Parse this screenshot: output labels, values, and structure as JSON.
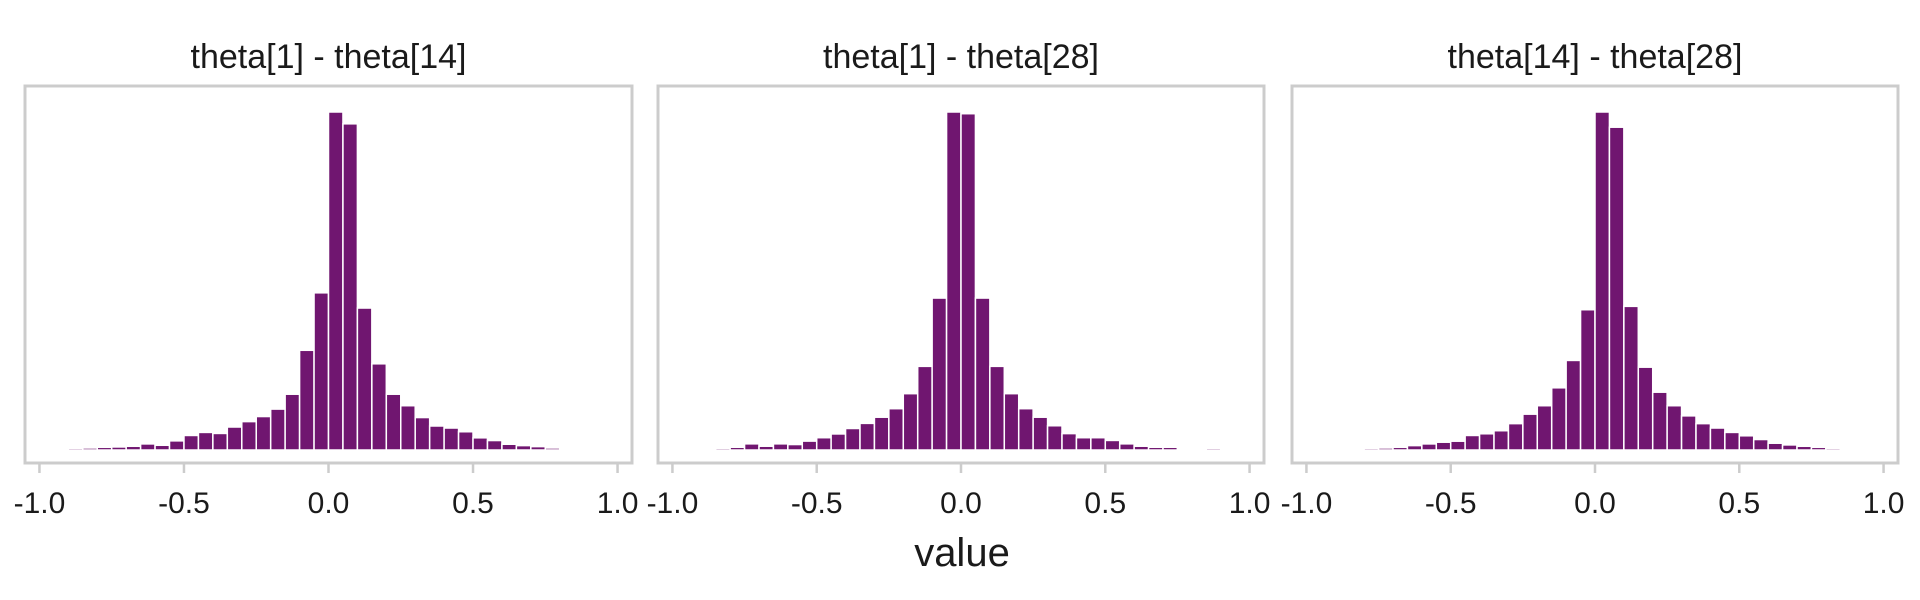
{
  "chart_data": {
    "type": "bar",
    "xlabel": "value",
    "xlim": [
      -1.05,
      1.05
    ],
    "xticks": [
      -1.0,
      -0.5,
      0.0,
      0.5,
      1.0
    ],
    "tick_labels": [
      "-1.0",
      "-0.5",
      "0.0",
      "0.5",
      "1.0"
    ],
    "bar_color": "#701670",
    "grid": false,
    "panels": [
      {
        "title": "theta[1] - theta[14]",
        "bin_width": 0.05,
        "bin_centers": [
          -0.875,
          -0.825,
          -0.775,
          -0.725,
          -0.675,
          -0.625,
          -0.575,
          -0.525,
          -0.475,
          -0.425,
          -0.375,
          -0.325,
          -0.275,
          -0.225,
          -0.175,
          -0.125,
          -0.075,
          -0.025,
          0.025,
          0.075,
          0.125,
          0.175,
          0.225,
          0.275,
          0.325,
          0.375,
          0.425,
          0.475,
          0.525,
          0.575,
          0.625,
          0.675,
          0.725,
          0.775,
          0.825,
          0.875,
          0.925
        ],
        "values": [
          0.005,
          0.006,
          0.008,
          0.009,
          0.011,
          0.018,
          0.014,
          0.027,
          0.043,
          0.052,
          0.049,
          0.068,
          0.084,
          0.099,
          0.121,
          0.165,
          0.295,
          0.465,
          1.0,
          0.965,
          0.42,
          0.255,
          0.165,
          0.131,
          0.096,
          0.071,
          0.065,
          0.054,
          0.036,
          0.028,
          0.017,
          0.013,
          0.01,
          0.006,
          0.004,
          0.003,
          0.002
        ]
      },
      {
        "title": "theta[1] - theta[28]",
        "bin_width": 0.05,
        "bin_centers": [
          -0.875,
          -0.825,
          -0.775,
          -0.725,
          -0.675,
          -0.625,
          -0.575,
          -0.525,
          -0.475,
          -0.425,
          -0.375,
          -0.325,
          -0.275,
          -0.225,
          -0.175,
          -0.125,
          -0.075,
          -0.025,
          0.025,
          0.075,
          0.125,
          0.175,
          0.225,
          0.275,
          0.325,
          0.375,
          0.425,
          0.475,
          0.525,
          0.575,
          0.625,
          0.675,
          0.725,
          0.775,
          0.825,
          0.875,
          0.925
        ],
        "values": [
          0.004,
          0.005,
          0.008,
          0.018,
          0.011,
          0.018,
          0.016,
          0.026,
          0.036,
          0.047,
          0.063,
          0.078,
          0.096,
          0.121,
          0.165,
          0.245,
          0.445,
          0.99,
          0.985,
          0.445,
          0.245,
          0.165,
          0.121,
          0.096,
          0.071,
          0.048,
          0.036,
          0.036,
          0.028,
          0.018,
          0.011,
          0.008,
          0.008,
          0.004,
          0.003,
          0.005,
          0.002
        ]
      },
      {
        "title": "theta[14] - theta[28]",
        "bin_width": 0.05,
        "bin_centers": [
          -0.875,
          -0.825,
          -0.775,
          -0.725,
          -0.675,
          -0.625,
          -0.575,
          -0.525,
          -0.475,
          -0.425,
          -0.375,
          -0.325,
          -0.275,
          -0.225,
          -0.175,
          -0.125,
          -0.075,
          -0.025,
          0.025,
          0.075,
          0.125,
          0.175,
          0.225,
          0.275,
          0.325,
          0.375,
          0.425,
          0.475,
          0.525,
          0.575,
          0.625,
          0.675,
          0.725,
          0.775,
          0.825
        ],
        "values": [
          0.002,
          0.003,
          0.005,
          0.006,
          0.008,
          0.013,
          0.018,
          0.023,
          0.026,
          0.043,
          0.048,
          0.057,
          0.078,
          0.106,
          0.131,
          0.184,
          0.265,
          0.415,
          1.0,
          0.955,
          0.425,
          0.245,
          0.171,
          0.131,
          0.101,
          0.078,
          0.065,
          0.052,
          0.042,
          0.031,
          0.02,
          0.015,
          0.011,
          0.008,
          0.005
        ]
      }
    ]
  }
}
